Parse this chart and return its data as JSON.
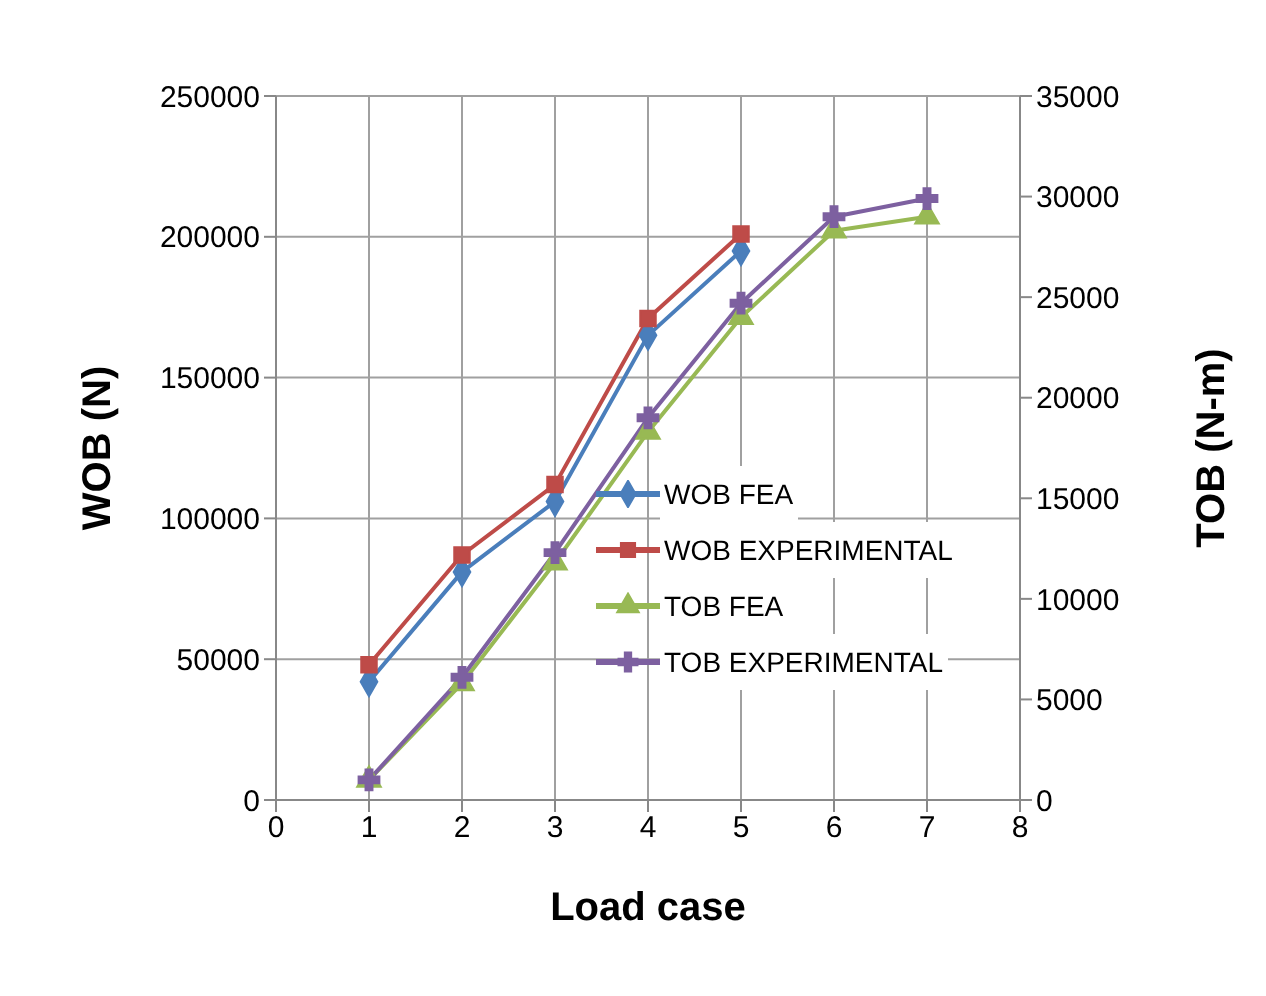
{
  "chart_data": {
    "type": "line",
    "xlabel": "Load case",
    "ylabel": "WOB (N)",
    "y2label": "TOB (N-m)",
    "x": [
      1,
      2,
      3,
      4,
      5,
      6,
      7
    ],
    "series": [
      {
        "name": "WOB FEA",
        "color": "#4a7ebb",
        "marker": "diamond",
        "values": [
          42000,
          81000,
          106000,
          165000,
          195000,
          null,
          null
        ]
      },
      {
        "name": "WOB EXPERIMENTAL",
        "color": "#be4b48",
        "marker": "square",
        "values": [
          48000,
          87000,
          112000,
          171000,
          201000,
          null,
          null
        ]
      },
      {
        "name": "TOB FEA",
        "color": "#98b954",
        "marker": "triangle",
        "axis": "y2",
        "values": [
          1000,
          5800,
          11800,
          18300,
          24000,
          28300,
          29000
        ]
      },
      {
        "name": "TOB EXPERIMENTAL",
        "color": "#7d60a0",
        "marker": "cross",
        "axis": "y2",
        "values": [
          1000,
          6100,
          12300,
          19000,
          24700,
          29000,
          29900
        ]
      }
    ],
    "xlim": [
      0,
      8
    ],
    "xticks": [
      0,
      1,
      2,
      3,
      4,
      5,
      6,
      7,
      8
    ],
    "ylim": [
      0,
      250000
    ],
    "yticks": [
      0,
      50000,
      100000,
      150000,
      200000,
      250000
    ],
    "y2lim": [
      0,
      35000
    ],
    "y2ticks": [
      0,
      5000,
      10000,
      15000,
      20000,
      25000,
      30000,
      35000
    ],
    "grid": true,
    "legend": "bottom right",
    "line_style": "solid"
  }
}
